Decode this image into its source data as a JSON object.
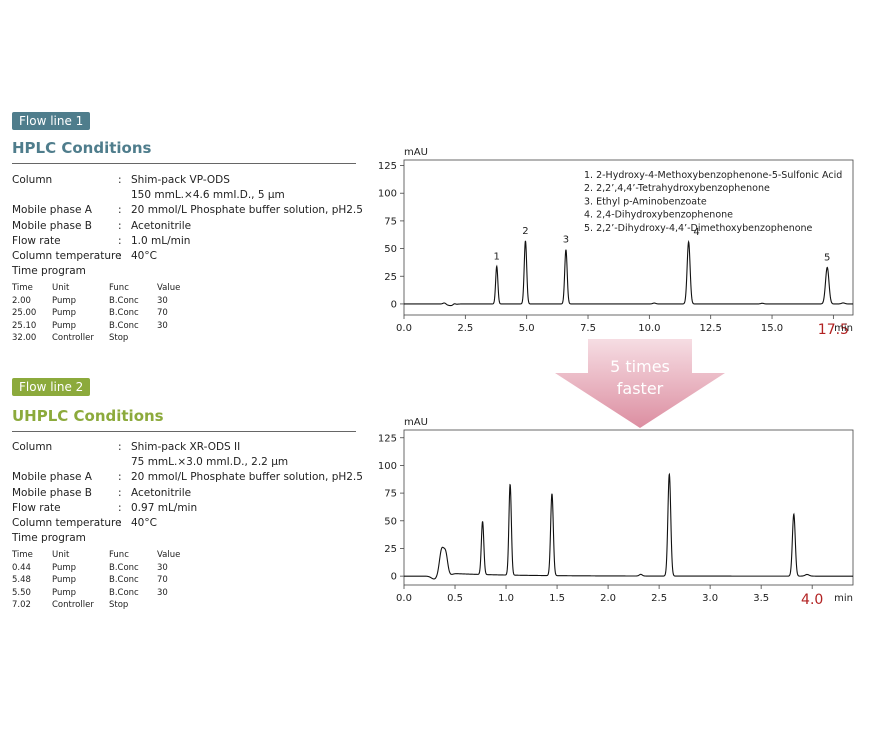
{
  "colors": {
    "flow1_badge": "#4f7d8c",
    "flow1_title": "#4f7d8c",
    "flow2_badge": "#8caa3c",
    "flow2_title": "#8caa3c",
    "speed_time": "#b22222",
    "arrow": "#e8a5b4"
  },
  "panel1": {
    "badge": "Flow line 1",
    "title": "HPLC Conditions",
    "conditions": [
      {
        "label": "Column",
        "value": "Shim-pack VP-ODS"
      },
      {
        "label": "",
        "value": "150 mmL.×4.6 mmI.D., 5 µm"
      },
      {
        "label": "Mobile phase A",
        "value": "20 mmol/L Phosphate buffer solution, pH2.5"
      },
      {
        "label": "Mobile phase B",
        "value": "Acetonitrile"
      },
      {
        "label": "Flow rate",
        "value": "1.0 mL/min"
      },
      {
        "label": "Column temperature",
        "value": "40°C"
      },
      {
        "label": "Time program",
        "value": ""
      }
    ],
    "time_program": {
      "headers": [
        "Time",
        "Unit",
        "Func",
        "Value"
      ],
      "rows": [
        [
          "2.00",
          "Pump",
          "B.Conc",
          "30"
        ],
        [
          "25.00",
          "Pump",
          "B.Conc",
          "70"
        ],
        [
          "25.10",
          "Pump",
          "B.Conc",
          "30"
        ],
        [
          "32.00",
          "Controller",
          "Stop",
          ""
        ]
      ]
    }
  },
  "panel2": {
    "badge": "Flow line 2",
    "title": "UHPLC Conditions",
    "conditions": [
      {
        "label": "Column",
        "value": "Shim-pack XR-ODS II"
      },
      {
        "label": "",
        "value": "75 mmL.×3.0 mmI.D., 2.2 µm"
      },
      {
        "label": "Mobile phase A",
        "value": "20 mmol/L Phosphate buffer solution, pH2.5"
      },
      {
        "label": "Mobile phase B",
        "value": "Acetonitrile"
      },
      {
        "label": "Flow rate",
        "value": "0.97 mL/min"
      },
      {
        "label": "Column temperature",
        "value": "40°C"
      },
      {
        "label": "Time program",
        "value": ""
      }
    ],
    "time_program": {
      "headers": [
        "Time",
        "Unit",
        "Func",
        "Value"
      ],
      "rows": [
        [
          "0.44",
          "Pump",
          "B.Conc",
          "30"
        ],
        [
          "5.48",
          "Pump",
          "B.Conc",
          "70"
        ],
        [
          "5.50",
          "Pump",
          "B.Conc",
          "30"
        ],
        [
          "7.02",
          "Controller",
          "Stop",
          ""
        ]
      ]
    }
  },
  "arrow_text": [
    "5 times",
    "faster"
  ],
  "chart_data": [
    {
      "type": "line",
      "ylabel": "mAU",
      "xlabel": "min",
      "xlim": [
        0,
        18.3
      ],
      "ylim": [
        -10,
        130
      ],
      "xticks": [
        "0.0",
        "2.5",
        "5.0",
        "7.5",
        "10.0",
        "12.5",
        "15.0",
        "17.5"
      ],
      "xtick_values": [
        0,
        2.5,
        5,
        7.5,
        10,
        12.5,
        15,
        17.5
      ],
      "highlight_tick": "17.5",
      "yticks": [
        0,
        25,
        50,
        75,
        100,
        125
      ],
      "peaks": [
        {
          "label": "1",
          "x": 3.78,
          "height": 34,
          "width": 0.045
        },
        {
          "label": "2",
          "x": 4.95,
          "height": 57,
          "width": 0.05
        },
        {
          "label": "3",
          "x": 6.6,
          "height": 49,
          "width": 0.05
        },
        {
          "label": "4",
          "x": 11.6,
          "height": 56,
          "width": 0.06
        },
        {
          "label": "5",
          "x": 17.25,
          "height": 33,
          "width": 0.07
        }
      ],
      "legend": [
        "1. 2-Hydroxy-4-Methoxybenzophenone-5-Sulfonic Acid",
        "2. 2,2’,4,4’-Tetrahydroxybenzophenone",
        "3. Ethyl p-Aminobenzoate",
        "4. 2,4-Dihydroxybenzophenone",
        "5. 2,2’-Dihydroxy-4,4’-Dimethoxybenzophenone"
      ]
    },
    {
      "type": "line",
      "ylabel": "mAU",
      "xlabel": "min",
      "xlim": [
        0,
        4.4
      ],
      "ylim": [
        -8,
        132
      ],
      "xticks": [
        "0.0",
        "0.5",
        "1.0",
        "1.5",
        "2.0",
        "2.5",
        "3.0",
        "3.5",
        "4.0"
      ],
      "xtick_values": [
        0,
        0.5,
        1,
        1.5,
        2,
        2.5,
        3,
        3.5,
        4
      ],
      "highlight_tick": "4.0",
      "yticks": [
        0,
        25,
        50,
        75,
        100,
        125
      ],
      "peaks": [
        {
          "x": 0.77,
          "height": 48,
          "width": 0.012
        },
        {
          "x": 1.04,
          "height": 82,
          "width": 0.012
        },
        {
          "x": 1.45,
          "height": 74,
          "width": 0.013
        },
        {
          "x": 2.6,
          "height": 92,
          "width": 0.014
        },
        {
          "x": 3.82,
          "height": 56,
          "width": 0.014
        }
      ]
    }
  ]
}
